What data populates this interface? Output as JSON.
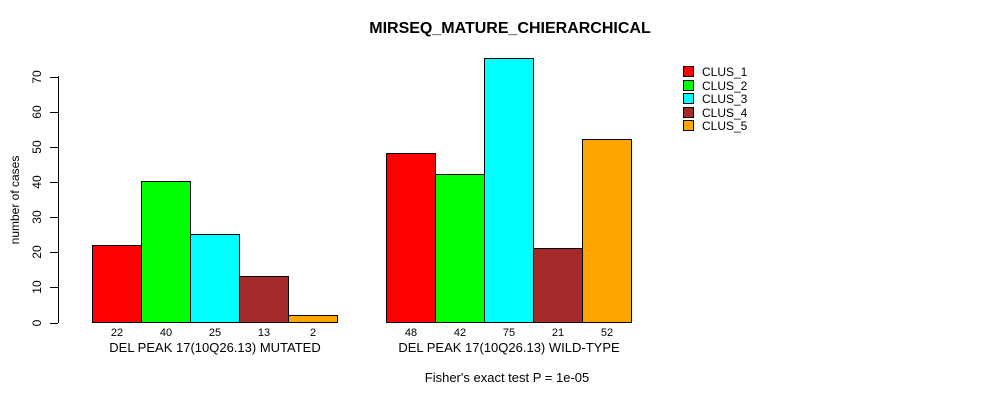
{
  "figure": {
    "title": "MIRSEQ_MATURE_CHIERARCHICAL",
    "annotation": "Fisher's exact test P = 1e-05"
  },
  "chart_data": {
    "type": "bar",
    "title": "MIRSEQ_MATURE_CHIERARCHICAL",
    "xlabel": "",
    "ylabel": "number of cases",
    "ylim": [
      0,
      70
    ],
    "y_ticks": [
      0,
      10,
      20,
      30,
      40,
      50,
      60,
      70
    ],
    "grid": false,
    "legend_position": "top-right",
    "annotation": "Fisher's exact test P = 1e-05",
    "clusters": [
      {
        "name": "CLUS_1",
        "color": "#FF0000"
      },
      {
        "name": "CLUS_2",
        "color": "#00FF00"
      },
      {
        "name": "CLUS_3",
        "color": "#00FFFF"
      },
      {
        "name": "CLUS_4",
        "color": "#A52A2A"
      },
      {
        "name": "CLUS_5",
        "color": "#FFA500"
      }
    ],
    "groups": [
      {
        "label": "DEL PEAK 17(10Q26.13) MUTATED",
        "values": [
          22,
          40,
          25,
          13,
          2
        ]
      },
      {
        "label": "DEL PEAK 17(10Q26.13) WILD-TYPE",
        "values": [
          48,
          42,
          75,
          21,
          52
        ]
      }
    ]
  }
}
